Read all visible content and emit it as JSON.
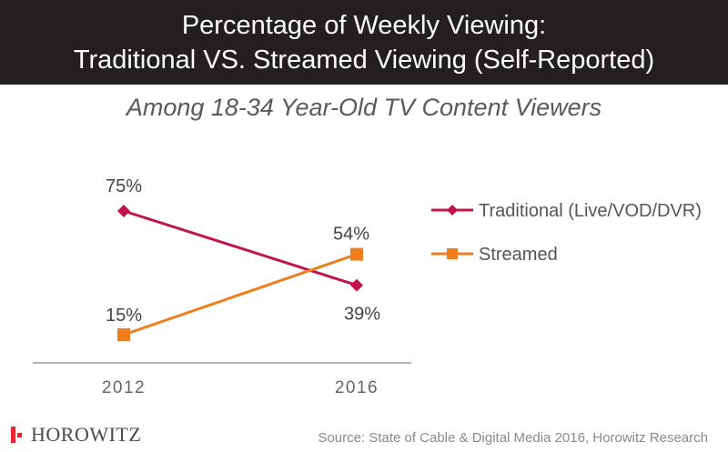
{
  "header": {
    "title_line1": "Percentage of Weekly Viewing:",
    "title_line2": "Traditional VS. Streamed Viewing (Self-Reported)",
    "subtitle": "Among 18-34 Year-Old TV Content Viewers"
  },
  "chart_data": {
    "type": "line",
    "categories": [
      "2012",
      "2016"
    ],
    "series": [
      {
        "name": "Traditional (Live/VOD/DVR)",
        "values": [
          75,
          39
        ],
        "labels": [
          "75%",
          "39%"
        ],
        "color": "#c0144a",
        "marker": "diamond"
      },
      {
        "name": "Streamed",
        "values": [
          15,
          54
        ],
        "labels": [
          "15%",
          "54%"
        ],
        "color": "#f07d1e",
        "marker": "square"
      }
    ],
    "ylim": [
      15,
      75
    ],
    "legend_position": "right",
    "grid": false
  },
  "footer": {
    "logo_text": "HOROWITZ",
    "source": "Source: State of Cable & Digital Media 2016, Horowitz Research",
    "logo_color": "#e8262d"
  }
}
